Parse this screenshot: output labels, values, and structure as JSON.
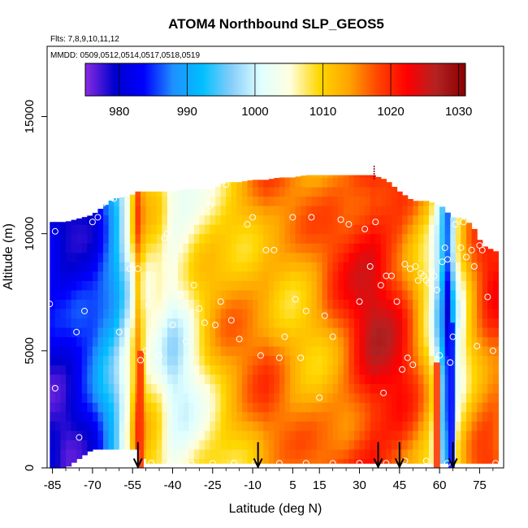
{
  "chart_data": {
    "type": "heatmap",
    "title": "ATOM4 Northbound SLP_GEOS5",
    "annotations": {
      "flights": "Flts: 7,8,9,10,11,12",
      "dates": "MMDD: 0509,0512,0514,0517,0518,0519"
    },
    "xlabel": "Latitude (deg N)",
    "ylabel": "Altitude (m)",
    "xlim": [
      -87,
      84
    ],
    "ylim": [
      0,
      18000
    ],
    "x_ticks": [
      -85,
      -70,
      -55,
      -40,
      -25,
      -10,
      5,
      15,
      30,
      45,
      60,
      75
    ],
    "x_tick_labels": [
      "-85",
      "-70",
      "-55",
      "-40",
      "-25",
      "-10",
      "5",
      "15",
      "30",
      "45",
      "60",
      "75"
    ],
    "y_ticks": [
      0,
      5000,
      10000,
      15000
    ],
    "y_tick_labels": [
      "0",
      "5000",
      "10000",
      "15000"
    ],
    "colorbar": {
      "min": 975,
      "max": 1031,
      "ticks": [
        980,
        990,
        1000,
        1010,
        1020,
        1030
      ],
      "tick_labels": [
        "980",
        "990",
        "1000",
        "1010",
        "1020",
        "1030"
      ],
      "colors": [
        "#8a2be2",
        "#0000cd",
        "#0000ff",
        "#1e90ff",
        "#00bfff",
        "#87cefa",
        "#e0ffff",
        "#ffffe0",
        "#ffd700",
        "#ffa500",
        "#ff4500",
        "#ff0000",
        "#b22222",
        "#8b0000"
      ]
    },
    "field_profile": {
      "lat": [
        -86,
        -80,
        -70,
        -62,
        -56,
        -53,
        -50,
        -45,
        -40,
        -35,
        -30,
        -25,
        -20,
        -15,
        -10,
        -5,
        0,
        5,
        10,
        15,
        20,
        25,
        30,
        35,
        40,
        45,
        50,
        55,
        58,
        60,
        62,
        63,
        64,
        65,
        67,
        70,
        73,
        76,
        80,
        82
      ],
      "slp": [
        981,
        980,
        984,
        992,
        1004,
        1015,
        1008,
        1006,
        1001,
        1003,
        1007,
        1010,
        1012,
        1013,
        1014,
        1015,
        1014,
        1013,
        1013,
        1014,
        1016,
        1018,
        1021,
        1023,
        1022,
        1020,
        1016,
        1010,
        1004,
        996,
        990,
        985,
        988,
        996,
        1004,
        1010,
        1014,
        1017,
        1019,
        1018
      ],
      "alt_top": [
        10500,
        10500,
        10800,
        11500,
        11600,
        11800,
        11800,
        11800,
        11800,
        11900,
        11900,
        11900,
        12200,
        12200,
        12300,
        12300,
        12400,
        12400,
        12500,
        12500,
        12500,
        12500,
        12500,
        12500,
        12300,
        11800,
        11400,
        11400,
        11300,
        11200,
        11100,
        10900,
        10800,
        10700,
        10700,
        10600,
        10200,
        9500,
        9300,
        9200
      ],
      "alt_bottom": [
        0,
        0,
        800,
        800,
        800,
        800,
        200,
        200,
        200,
        200,
        200,
        200,
        200,
        200,
        200,
        200,
        200,
        200,
        200,
        200,
        200,
        200,
        200,
        200,
        200,
        200,
        200,
        200,
        200,
        200,
        200,
        200,
        200,
        200,
        200,
        200,
        200,
        200,
        200,
        200
      ]
    },
    "vertical_stripes": [
      {
        "lat": -52,
        "slp": 1019,
        "alt_max": 5000
      },
      {
        "lat": 59,
        "slp": 1019,
        "alt_max": 4500
      },
      {
        "lat": 64.5,
        "slp": 984,
        "alt_max": 6200
      }
    ],
    "arrows_lat": [
      -53,
      -8,
      37,
      45,
      65
    ],
    "marker_lat": 35.5,
    "flight_points": [
      {
        "lat": -84,
        "alt": 10100
      },
      {
        "lat": -86,
        "alt": 7000
      },
      {
        "lat": -84,
        "alt": 3400
      },
      {
        "lat": -76,
        "alt": 5800
      },
      {
        "lat": -75,
        "alt": 1300
      },
      {
        "lat": -73,
        "alt": 6700
      },
      {
        "lat": -70,
        "alt": 10500
      },
      {
        "lat": -68,
        "alt": 10700
      },
      {
        "lat": -66,
        "alt": 11300
      },
      {
        "lat": -62,
        "alt": 11500
      },
      {
        "lat": -60,
        "alt": 5800
      },
      {
        "lat": -56,
        "alt": 8500
      },
      {
        "lat": -53,
        "alt": 8500
      },
      {
        "lat": -52,
        "alt": 4600
      },
      {
        "lat": -50,
        "alt": 5000
      },
      {
        "lat": -49,
        "alt": 7000
      },
      {
        "lat": -47,
        "alt": 5600
      },
      {
        "lat": -45,
        "alt": 4800
      },
      {
        "lat": -43,
        "alt": 9800
      },
      {
        "lat": -42,
        "alt": 10000
      },
      {
        "lat": -40,
        "alt": 6100
      },
      {
        "lat": -37,
        "alt": 7400
      },
      {
        "lat": -35,
        "alt": 5400
      },
      {
        "lat": -32,
        "alt": 7800
      },
      {
        "lat": -30,
        "alt": 6800
      },
      {
        "lat": -28,
        "alt": 6200
      },
      {
        "lat": -26,
        "alt": 11200
      },
      {
        "lat": -24,
        "alt": 6100
      },
      {
        "lat": -22,
        "alt": 7100
      },
      {
        "lat": -20,
        "alt": 12100
      },
      {
        "lat": -18,
        "alt": 6300
      },
      {
        "lat": -15,
        "alt": 5500
      },
      {
        "lat": -12,
        "alt": 10400
      },
      {
        "lat": -10,
        "alt": 10700
      },
      {
        "lat": -7,
        "alt": 4800
      },
      {
        "lat": -5,
        "alt": 9300
      },
      {
        "lat": -2,
        "alt": 9300
      },
      {
        "lat": 0,
        "alt": 4700
      },
      {
        "lat": 2,
        "alt": 5600
      },
      {
        "lat": 5,
        "alt": 10700
      },
      {
        "lat": 6,
        "alt": 7200
      },
      {
        "lat": 8,
        "alt": 4700
      },
      {
        "lat": 10,
        "alt": 6700
      },
      {
        "lat": 12,
        "alt": 10700
      },
      {
        "lat": 15,
        "alt": 3000
      },
      {
        "lat": 17,
        "alt": 6500
      },
      {
        "lat": 20,
        "alt": 5600
      },
      {
        "lat": 23,
        "alt": 10600
      },
      {
        "lat": 26,
        "alt": 10400
      },
      {
        "lat": 30,
        "alt": 7100
      },
      {
        "lat": 32,
        "alt": 10200
      },
      {
        "lat": 34,
        "alt": 8600
      },
      {
        "lat": 36,
        "alt": 10500
      },
      {
        "lat": 38,
        "alt": 7800
      },
      {
        "lat": 39,
        "alt": 3200
      },
      {
        "lat": 40,
        "alt": 8200
      },
      {
        "lat": 42,
        "alt": 8200
      },
      {
        "lat": 44,
        "alt": 7100
      },
      {
        "lat": 46,
        "alt": 4200
      },
      {
        "lat": 47,
        "alt": 8700
      },
      {
        "lat": 48,
        "alt": 4700
      },
      {
        "lat": 49,
        "alt": 8500
      },
      {
        "lat": 50,
        "alt": 4400
      },
      {
        "lat": 51,
        "alt": 8600
      },
      {
        "lat": 52,
        "alt": 8000
      },
      {
        "lat": 53,
        "alt": 8300
      },
      {
        "lat": 54,
        "alt": 8200
      },
      {
        "lat": 55,
        "alt": 8000
      },
      {
        "lat": 56,
        "alt": 7900
      },
      {
        "lat": 57,
        "alt": 8400
      },
      {
        "lat": 58,
        "alt": 8200
      },
      {
        "lat": 59,
        "alt": 7600
      },
      {
        "lat": 60,
        "alt": 4800
      },
      {
        "lat": 61,
        "alt": 8800
      },
      {
        "lat": 62,
        "alt": 9400
      },
      {
        "lat": 63,
        "alt": 8900
      },
      {
        "lat": 64,
        "alt": 4500
      },
      {
        "lat": 65,
        "alt": 5600
      },
      {
        "lat": 66,
        "alt": 10400
      },
      {
        "lat": 67,
        "alt": 10800
      },
      {
        "lat": 68,
        "alt": 9400
      },
      {
        "lat": 69,
        "alt": 10500
      },
      {
        "lat": 70,
        "alt": 9000
      },
      {
        "lat": 71,
        "alt": 10700
      },
      {
        "lat": 72,
        "alt": 9300
      },
      {
        "lat": 73,
        "alt": 8600
      },
      {
        "lat": 74,
        "alt": 5200
      },
      {
        "lat": 75,
        "alt": 9500
      },
      {
        "lat": 76,
        "alt": 9300
      },
      {
        "lat": 78,
        "alt": 7300
      },
      {
        "lat": 80,
        "alt": 5000
      },
      {
        "lat": 81,
        "alt": 200
      },
      {
        "lat": -65,
        "alt": 200
      },
      {
        "lat": -55,
        "alt": 200
      },
      {
        "lat": -48,
        "alt": 200
      },
      {
        "lat": -41,
        "alt": 200
      },
      {
        "lat": -33,
        "alt": 200
      },
      {
        "lat": -25,
        "alt": 200
      },
      {
        "lat": -17,
        "alt": 200
      },
      {
        "lat": -9,
        "alt": 200
      },
      {
        "lat": 0,
        "alt": 200
      },
      {
        "lat": 10,
        "alt": 200
      },
      {
        "lat": 20,
        "alt": 200
      },
      {
        "lat": 30,
        "alt": 200
      },
      {
        "lat": 40,
        "alt": 200
      },
      {
        "lat": 47,
        "alt": 300
      },
      {
        "lat": 55,
        "alt": 300
      },
      {
        "lat": 63,
        "alt": 200
      }
    ]
  }
}
